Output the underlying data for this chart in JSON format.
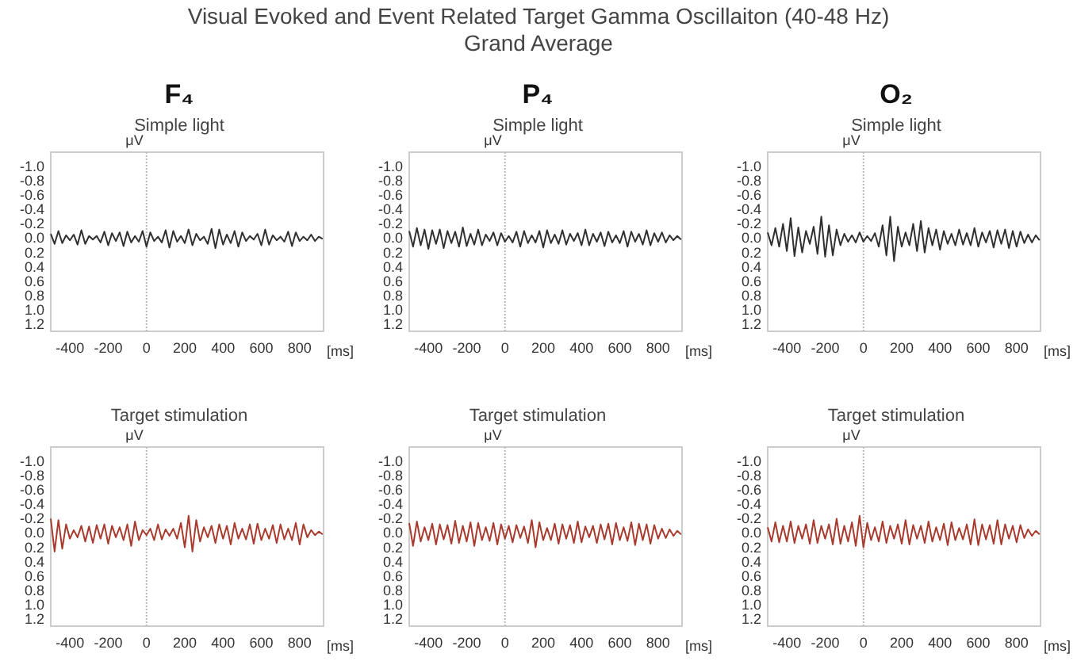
{
  "chart_data": [
    {
      "type": "line",
      "title": "F₄",
      "subtitle": "Simple light",
      "annotations": [
        "Visual Evoked and Event Related Target Gamma Oscillaiton (40-48 Hz)",
        "Grand Average"
      ],
      "xlabel": "[ms]",
      "ylabel": "μV",
      "xlim": [
        -500,
        925
      ],
      "xticks": [
        -400,
        -200,
        0,
        200,
        400,
        600,
        800
      ],
      "ylim": [
        1.3,
        -1.2
      ],
      "yticks": [
        {
          "value": -1,
          "label": "-1.0"
        },
        {
          "value": -0.8,
          "label": "-0.8"
        },
        {
          "value": -0.6,
          "label": "-0.6"
        },
        {
          "value": -0.4,
          "label": "-0.4"
        },
        {
          "value": -0.2,
          "label": "-0.2"
        },
        {
          "value": 0,
          "label": "0.0"
        },
        {
          "value": 0.2,
          "label": "0.2"
        },
        {
          "value": 0.4,
          "label": "0.4"
        },
        {
          "value": 0.6,
          "label": "0.6"
        },
        {
          "value": 0.8,
          "label": "0.8"
        },
        {
          "value": 1,
          "label": "1.0"
        },
        {
          "value": 1.2,
          "label": "1.2"
        }
      ],
      "ref_lines": [
        {
          "axis": "x",
          "value": 0,
          "color": "#bbbbbb",
          "line_style": "dotted"
        }
      ],
      "x": [
        -500,
        -480,
        -460,
        -440,
        -420,
        -400,
        -380,
        -360,
        -340,
        -320,
        -300,
        -280,
        -260,
        -240,
        -220,
        -200,
        -180,
        -160,
        -140,
        -120,
        -100,
        -80,
        -60,
        -40,
        -20,
        0,
        20,
        40,
        60,
        80,
        100,
        120,
        140,
        160,
        180,
        200,
        220,
        240,
        260,
        280,
        300,
        320,
        340,
        360,
        380,
        400,
        420,
        440,
        460,
        480,
        500,
        520,
        540,
        560,
        580,
        600,
        620,
        640,
        660,
        680,
        700,
        720,
        740,
        760,
        780,
        800,
        820,
        840,
        860,
        880,
        900,
        920
      ],
      "series": [
        {
          "color": "#303030",
          "values": [
            -0.06,
            0.08,
            -0.1,
            0.07,
            -0.04,
            0.03,
            -0.05,
            0.09,
            -0.11,
            0.08,
            -0.03,
            0.02,
            -0.03,
            0.06,
            -0.09,
            0.1,
            -0.07,
            0.04,
            -0.08,
            0.11,
            -0.09,
            0.06,
            -0.03,
            0.05,
            -0.1,
            0.12,
            -0.08,
            0.04,
            -0.02,
            0.06,
            -0.11,
            0.13,
            -0.1,
            0.05,
            -0.03,
            0.07,
            -0.12,
            0.1,
            -0.06,
            0.03,
            -0.02,
            0.08,
            -0.13,
            0.14,
            -0.12,
            0.09,
            -0.05,
            0.07,
            -0.1,
            0.12,
            -0.08,
            0.04,
            -0.03,
            0.02,
            -0.06,
            0.1,
            -0.12,
            0.09,
            -0.04,
            0.03,
            -0.02,
            0.05,
            -0.09,
            0.11,
            -0.08,
            0.04,
            -0.02,
            0.03,
            -0.05,
            0.04,
            -0.02,
            0.01
          ]
        }
      ]
    },
    {
      "type": "line",
      "title": "P₄",
      "subtitle": "Simple light",
      "xlabel": "[ms]",
      "ylabel": "μV",
      "xlim": [
        -500,
        925
      ],
      "xticks": [
        -400,
        -200,
        0,
        200,
        400,
        600,
        800
      ],
      "ylim": [
        1.3,
        -1.2
      ],
      "yticks": [
        {
          "value": -1,
          "label": "-1.0"
        },
        {
          "value": -0.8,
          "label": "-0.8"
        },
        {
          "value": -0.6,
          "label": "-0.6"
        },
        {
          "value": -0.4,
          "label": "-0.4"
        },
        {
          "value": -0.2,
          "label": "-0.2"
        },
        {
          "value": 0,
          "label": "0.0"
        },
        {
          "value": 0.2,
          "label": "0.2"
        },
        {
          "value": 0.4,
          "label": "0.4"
        },
        {
          "value": 0.6,
          "label": "0.6"
        },
        {
          "value": 0.8,
          "label": "0.8"
        },
        {
          "value": 1,
          "label": "1.0"
        },
        {
          "value": 1.2,
          "label": "1.2"
        }
      ],
      "ref_lines": [
        {
          "axis": "x",
          "value": 0,
          "color": "#bbbbbb",
          "line_style": "dotted"
        }
      ],
      "x": [
        -500,
        -480,
        -460,
        -440,
        -420,
        -400,
        -380,
        -360,
        -340,
        -320,
        -300,
        -280,
        -260,
        -240,
        -220,
        -200,
        -180,
        -160,
        -140,
        -120,
        -100,
        -80,
        -60,
        -40,
        -20,
        0,
        20,
        40,
        60,
        80,
        100,
        120,
        140,
        160,
        180,
        200,
        220,
        240,
        260,
        280,
        300,
        320,
        340,
        360,
        380,
        400,
        420,
        440,
        460,
        480,
        500,
        520,
        540,
        560,
        580,
        600,
        620,
        640,
        660,
        680,
        700,
        720,
        740,
        760,
        780,
        800,
        820,
        840,
        860,
        880,
        900,
        920
      ],
      "series": [
        {
          "color": "#303030",
          "values": [
            -0.1,
            0.12,
            -0.14,
            0.1,
            -0.12,
            0.15,
            -0.11,
            0.08,
            -0.12,
            0.14,
            -0.1,
            0.07,
            -0.09,
            0.12,
            -0.15,
            0.11,
            -0.06,
            0.09,
            -0.12,
            0.1,
            -0.05,
            0.04,
            -0.08,
            0.1,
            -0.07,
            0.05,
            -0.03,
            0.06,
            -0.09,
            0.12,
            -0.1,
            0.07,
            -0.04,
            0.06,
            -0.1,
            0.13,
            -0.11,
            0.07,
            -0.05,
            0.08,
            -0.11,
            0.09,
            -0.06,
            0.04,
            -0.07,
            0.1,
            -0.12,
            0.1,
            -0.06,
            0.05,
            -0.08,
            0.11,
            -0.09,
            0.06,
            -0.04,
            0.07,
            -0.1,
            0.12,
            -0.09,
            0.05,
            -0.06,
            0.09,
            -0.11,
            0.1,
            -0.07,
            0.05,
            -0.08,
            0.06,
            -0.04,
            0.03,
            -0.03,
            0.02
          ]
        }
      ]
    },
    {
      "type": "line",
      "title": "O₂",
      "subtitle": "Simple light",
      "xlabel": "[ms]",
      "ylabel": "μV",
      "xlim": [
        -500,
        925
      ],
      "xticks": [
        -400,
        -200,
        0,
        200,
        400,
        600,
        800
      ],
      "ylim": [
        1.3,
        -1.2
      ],
      "yticks": [
        {
          "value": -1,
          "label": "-1.0"
        },
        {
          "value": -0.8,
          "label": "-0.8"
        },
        {
          "value": -0.6,
          "label": "-0.6"
        },
        {
          "value": -0.4,
          "label": "-0.4"
        },
        {
          "value": -0.2,
          "label": "-0.2"
        },
        {
          "value": 0,
          "label": "0.0"
        },
        {
          "value": 0.2,
          "label": "0.2"
        },
        {
          "value": 0.4,
          "label": "0.4"
        },
        {
          "value": 0.6,
          "label": "0.6"
        },
        {
          "value": 0.8,
          "label": "0.8"
        },
        {
          "value": 1,
          "label": "1.0"
        },
        {
          "value": 1.2,
          "label": "1.2"
        }
      ],
      "ref_lines": [
        {
          "axis": "x",
          "value": 0,
          "color": "#bbbbbb",
          "line_style": "dotted"
        }
      ],
      "x": [
        -500,
        -480,
        -460,
        -440,
        -420,
        -400,
        -380,
        -360,
        -340,
        -320,
        -300,
        -280,
        -260,
        -240,
        -220,
        -200,
        -180,
        -160,
        -140,
        -120,
        -100,
        -80,
        -60,
        -40,
        -20,
        0,
        20,
        40,
        60,
        80,
        100,
        120,
        140,
        160,
        180,
        200,
        220,
        240,
        260,
        280,
        300,
        320,
        340,
        360,
        380,
        400,
        420,
        440,
        460,
        480,
        500,
        520,
        540,
        560,
        580,
        600,
        620,
        640,
        660,
        680,
        700,
        720,
        740,
        760,
        780,
        800,
        820,
        840,
        860,
        880,
        900,
        920
      ],
      "series": [
        {
          "color": "#303030",
          "values": [
            -0.08,
            0.1,
            -0.14,
            0.12,
            -0.2,
            0.18,
            -0.28,
            0.25,
            -0.15,
            0.2,
            -0.1,
            0.08,
            -0.16,
            0.22,
            -0.3,
            0.26,
            -0.18,
            0.24,
            -0.12,
            0.1,
            -0.06,
            0.05,
            -0.04,
            0.06,
            -0.08,
            0.05,
            -0.03,
            0.04,
            -0.07,
            0.12,
            -0.18,
            0.24,
            -0.3,
            0.32,
            -0.16,
            0.12,
            -0.08,
            0.1,
            -0.2,
            0.18,
            -0.24,
            0.2,
            -0.14,
            0.1,
            -0.12,
            0.16,
            -0.1,
            0.08,
            -0.06,
            0.1,
            -0.12,
            0.09,
            -0.07,
            0.1,
            -0.14,
            0.12,
            -0.08,
            0.06,
            -0.1,
            0.13,
            -0.11,
            0.08,
            -0.12,
            0.14,
            -0.1,
            0.12,
            -0.09,
            0.07,
            -0.05,
            0.06,
            -0.04,
            0.03
          ]
        }
      ]
    },
    {
      "type": "line",
      "title": "Target stimulation",
      "xlabel": "[ms]",
      "ylabel": "μV",
      "xlim": [
        -500,
        925
      ],
      "xticks": [
        -400,
        -200,
        0,
        200,
        400,
        600,
        800
      ],
      "ylim": [
        1.3,
        -1.2
      ],
      "yticks": [
        {
          "value": -1,
          "label": "-1.0"
        },
        {
          "value": -0.8,
          "label": "-0.8"
        },
        {
          "value": -0.6,
          "label": "-0.6"
        },
        {
          "value": -0.4,
          "label": "-0.4"
        },
        {
          "value": -0.2,
          "label": "-0.2"
        },
        {
          "value": 0,
          "label": "0.0"
        },
        {
          "value": 0.2,
          "label": "0.2"
        },
        {
          "value": 0.4,
          "label": "0.4"
        },
        {
          "value": 0.6,
          "label": "0.6"
        },
        {
          "value": 0.8,
          "label": "0.8"
        },
        {
          "value": 1,
          "label": "1.0"
        },
        {
          "value": 1.2,
          "label": "1.2"
        }
      ],
      "ref_lines": [
        {
          "axis": "x",
          "value": 0,
          "color": "#bbbbbb",
          "line_style": "dotted"
        }
      ],
      "x": [
        -500,
        -480,
        -460,
        -440,
        -420,
        -400,
        -380,
        -360,
        -340,
        -320,
        -300,
        -280,
        -260,
        -240,
        -220,
        -200,
        -180,
        -160,
        -140,
        -120,
        -100,
        -80,
        -60,
        -40,
        -20,
        0,
        20,
        40,
        60,
        80,
        100,
        120,
        140,
        160,
        180,
        200,
        220,
        240,
        260,
        280,
        300,
        320,
        340,
        360,
        380,
        400,
        420,
        440,
        460,
        480,
        500,
        520,
        540,
        560,
        580,
        600,
        620,
        640,
        660,
        680,
        700,
        720,
        740,
        760,
        780,
        800,
        820,
        840,
        860,
        880,
        900,
        920
      ],
      "series": [
        {
          "color": "#a83a2e",
          "values": [
            -0.2,
            0.26,
            -0.18,
            0.22,
            -0.12,
            0.08,
            -0.04,
            0.06,
            -0.1,
            0.12,
            -0.09,
            0.14,
            -0.11,
            0.08,
            -0.12,
            0.15,
            -0.1,
            0.06,
            -0.08,
            0.1,
            -0.12,
            0.18,
            -0.16,
            0.1,
            -0.04,
            0.03,
            -0.06,
            0.1,
            -0.12,
            0.09,
            -0.05,
            0.04,
            -0.06,
            0.08,
            -0.14,
            0.2,
            -0.24,
            0.26,
            -0.18,
            0.12,
            -0.08,
            0.06,
            -0.1,
            0.14,
            -0.12,
            0.08,
            -0.1,
            0.16,
            -0.14,
            0.08,
            -0.06,
            0.09,
            -0.12,
            0.15,
            -0.13,
            0.1,
            -0.06,
            0.08,
            -0.11,
            0.14,
            -0.12,
            0.09,
            -0.06,
            0.1,
            -0.14,
            0.16,
            -0.12,
            0.06,
            -0.04,
            0.03,
            -0.02,
            0.02
          ]
        }
      ]
    },
    {
      "type": "line",
      "title": "Target stimulation",
      "xlabel": "[ms]",
      "ylabel": "μV",
      "xlim": [
        -500,
        925
      ],
      "xticks": [
        -400,
        -200,
        0,
        200,
        400,
        600,
        800
      ],
      "ylim": [
        1.3,
        -1.2
      ],
      "yticks": [
        {
          "value": -1,
          "label": "-1.0"
        },
        {
          "value": -0.8,
          "label": "-0.8"
        },
        {
          "value": -0.6,
          "label": "-0.6"
        },
        {
          "value": -0.4,
          "label": "-0.4"
        },
        {
          "value": -0.2,
          "label": "-0.2"
        },
        {
          "value": 0,
          "label": "0.0"
        },
        {
          "value": 0.2,
          "label": "0.2"
        },
        {
          "value": 0.4,
          "label": "0.4"
        },
        {
          "value": 0.6,
          "label": "0.6"
        },
        {
          "value": 0.8,
          "label": "0.8"
        },
        {
          "value": 1,
          "label": "1.0"
        },
        {
          "value": 1.2,
          "label": "1.2"
        }
      ],
      "ref_lines": [
        {
          "axis": "x",
          "value": 0,
          "color": "#bbbbbb",
          "line_style": "dotted"
        }
      ],
      "x": [
        -500,
        -480,
        -460,
        -440,
        -420,
        -400,
        -380,
        -360,
        -340,
        -320,
        -300,
        -280,
        -260,
        -240,
        -220,
        -200,
        -180,
        -160,
        -140,
        -120,
        -100,
        -80,
        -60,
        -40,
        -20,
        0,
        20,
        40,
        60,
        80,
        100,
        120,
        140,
        160,
        180,
        200,
        220,
        240,
        260,
        280,
        300,
        320,
        340,
        360,
        380,
        400,
        420,
        440,
        460,
        480,
        500,
        520,
        540,
        560,
        580,
        600,
        620,
        640,
        660,
        680,
        700,
        720,
        740,
        760,
        780,
        800,
        820,
        840,
        860,
        880,
        900,
        920
      ],
      "series": [
        {
          "color": "#a83a2e",
          "values": [
            -0.14,
            0.18,
            -0.16,
            0.12,
            -0.08,
            0.1,
            -0.13,
            0.16,
            -0.12,
            0.09,
            -0.11,
            0.15,
            -0.17,
            0.14,
            -0.1,
            0.12,
            -0.15,
            0.18,
            -0.14,
            0.1,
            -0.08,
            0.11,
            -0.14,
            0.16,
            -0.12,
            0.08,
            -0.1,
            0.13,
            -0.11,
            0.07,
            -0.09,
            0.14,
            -0.18,
            0.2,
            -0.15,
            0.1,
            -0.07,
            0.1,
            -0.13,
            0.15,
            -0.12,
            0.08,
            -0.11,
            0.14,
            -0.16,
            0.13,
            -0.09,
            0.06,
            -0.1,
            0.14,
            -0.12,
            0.09,
            -0.13,
            0.16,
            -0.14,
            0.1,
            -0.08,
            0.11,
            -0.15,
            0.17,
            -0.13,
            0.1,
            -0.12,
            0.15,
            -0.11,
            0.08,
            -0.06,
            0.07,
            -0.05,
            0.04,
            -0.03,
            0.02
          ]
        }
      ]
    },
    {
      "type": "line",
      "title": "Target stimulation",
      "xlabel": "[ms]",
      "ylabel": "μV",
      "xlim": [
        -500,
        925
      ],
      "xticks": [
        -400,
        -200,
        0,
        200,
        400,
        600,
        800
      ],
      "ylim": [
        1.3,
        -1.2
      ],
      "yticks": [
        {
          "value": -1,
          "label": "-1.0"
        },
        {
          "value": -0.8,
          "label": "-0.8"
        },
        {
          "value": -0.6,
          "label": "-0.6"
        },
        {
          "value": -0.4,
          "label": "-0.4"
        },
        {
          "value": -0.2,
          "label": "-0.2"
        },
        {
          "value": 0,
          "label": "0.0"
        },
        {
          "value": 0.2,
          "label": "0.2"
        },
        {
          "value": 0.4,
          "label": "0.4"
        },
        {
          "value": 0.6,
          "label": "0.6"
        },
        {
          "value": 0.8,
          "label": "0.8"
        },
        {
          "value": 1,
          "label": "1.0"
        },
        {
          "value": 1.2,
          "label": "1.2"
        }
      ],
      "ref_lines": [
        {
          "axis": "x",
          "value": 0,
          "color": "#bbbbbb",
          "line_style": "dotted"
        }
      ],
      "x": [
        -500,
        -480,
        -460,
        -440,
        -420,
        -400,
        -380,
        -360,
        -340,
        -320,
        -300,
        -280,
        -260,
        -240,
        -220,
        -200,
        -180,
        -160,
        -140,
        -120,
        -100,
        -80,
        -60,
        -40,
        -20,
        0,
        20,
        40,
        60,
        80,
        100,
        120,
        140,
        160,
        180,
        200,
        220,
        240,
        260,
        280,
        300,
        320,
        340,
        360,
        380,
        400,
        420,
        440,
        460,
        480,
        500,
        520,
        540,
        560,
        580,
        600,
        620,
        640,
        660,
        680,
        700,
        720,
        740,
        760,
        780,
        800,
        820,
        840,
        860,
        880,
        900,
        920
      ],
      "series": [
        {
          "color": "#a83a2e",
          "values": [
            -0.08,
            0.12,
            -0.15,
            0.13,
            -0.1,
            0.12,
            -0.16,
            0.14,
            -0.1,
            0.08,
            -0.12,
            0.15,
            -0.18,
            0.14,
            -0.1,
            0.08,
            -0.12,
            0.16,
            -0.2,
            0.15,
            -0.1,
            0.12,
            -0.15,
            0.18,
            -0.24,
            0.2,
            -0.14,
            0.1,
            -0.08,
            0.12,
            -0.16,
            0.14,
            -0.1,
            0.08,
            -0.12,
            0.15,
            -0.18,
            0.16,
            -0.11,
            0.08,
            -0.1,
            0.14,
            -0.16,
            0.12,
            -0.08,
            0.1,
            -0.13,
            0.17,
            -0.15,
            0.1,
            -0.07,
            0.09,
            -0.12,
            0.16,
            -0.19,
            0.17,
            -0.12,
            0.09,
            -0.11,
            0.15,
            -0.18,
            0.16,
            -0.12,
            0.08,
            -0.1,
            0.13,
            -0.11,
            0.07,
            -0.05,
            0.04,
            -0.03,
            0.02
          ]
        }
      ]
    }
  ]
}
